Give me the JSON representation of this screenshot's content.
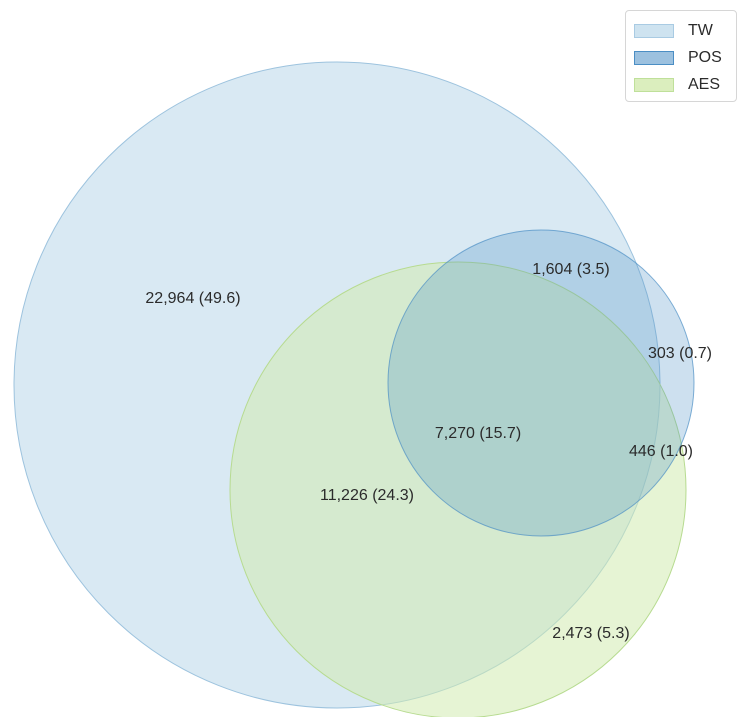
{
  "sets": [
    {
      "name": "TW",
      "color": "#b9d7ea"
    },
    {
      "name": "POS",
      "color": "#4b8ec4"
    },
    {
      "name": "AES",
      "color": "#cfe8a8"
    }
  ],
  "regions": {
    "tw_only": "22,964 (49.6)",
    "tw_pos": "1,604 (3.5)",
    "pos_only": "303 (0.7)",
    "all_three": "7,270 (15.7)",
    "pos_aes": "446 (1.0)",
    "tw_aes": "11,226 (24.3)",
    "aes_only": "2,473 (5.3)"
  }
}
